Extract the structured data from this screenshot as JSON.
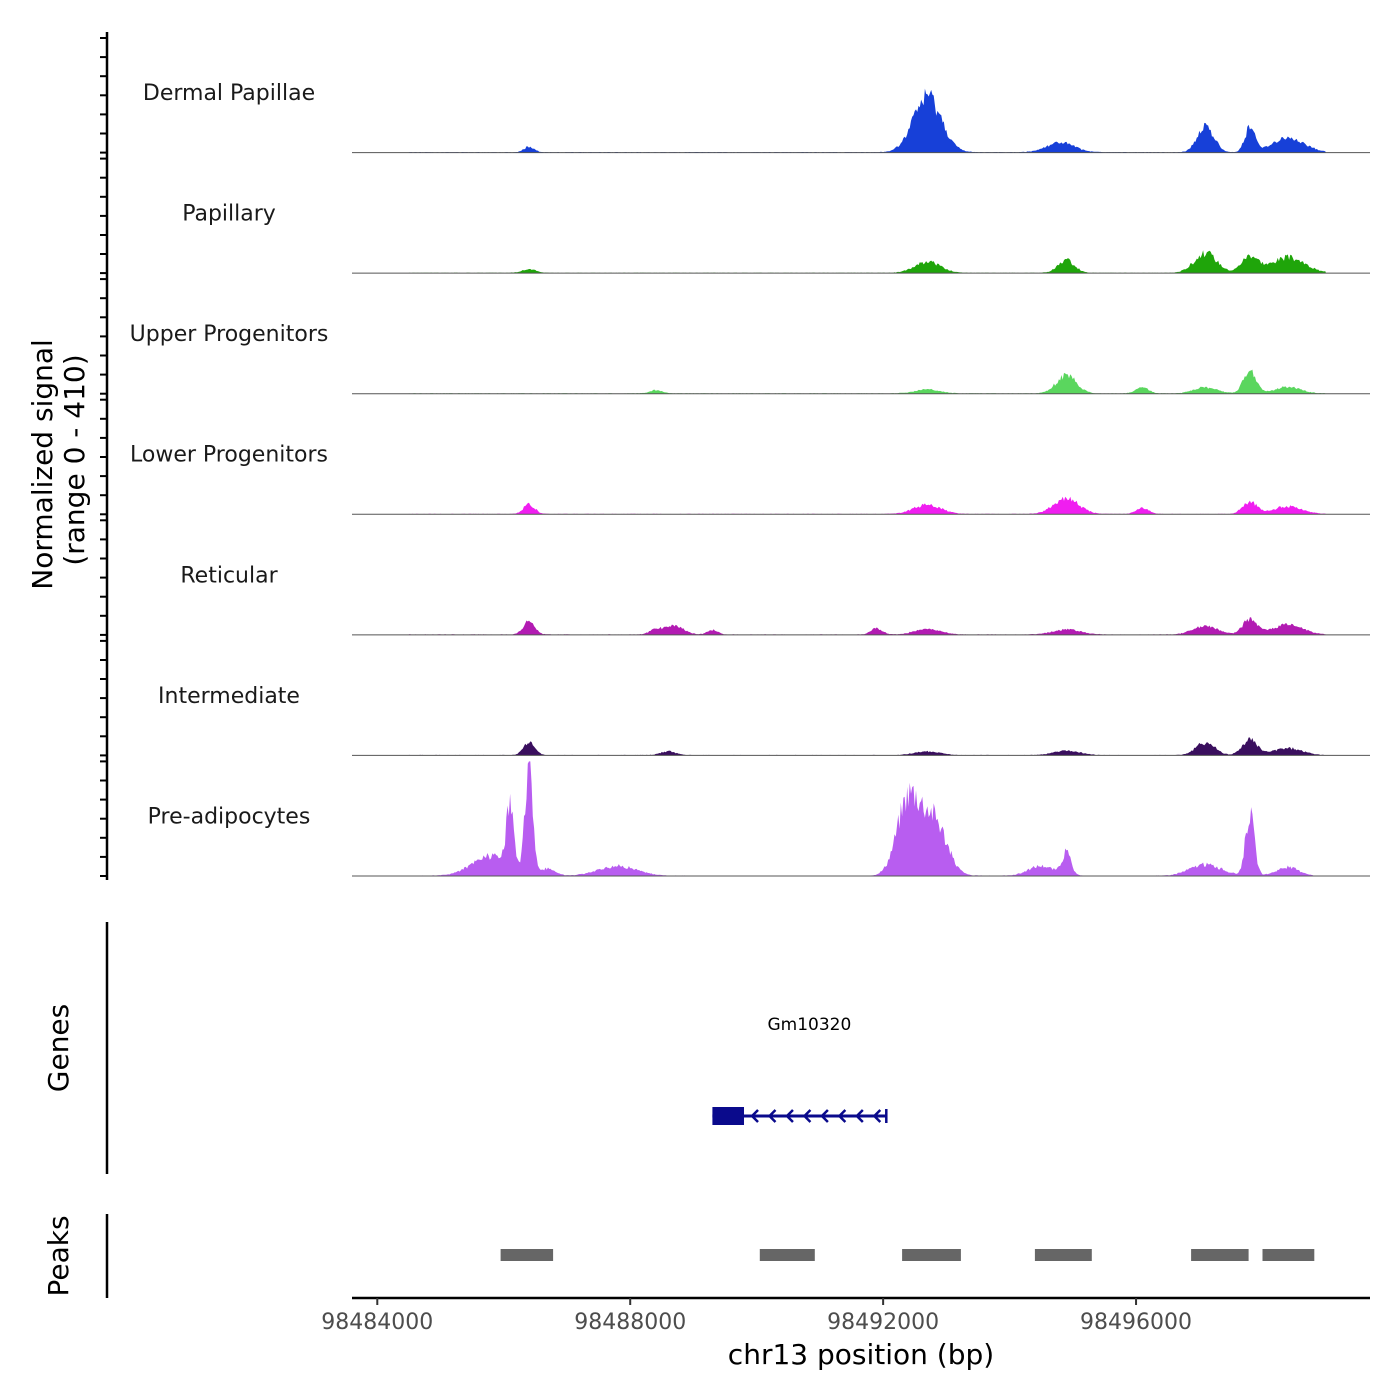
{
  "chart_data": {
    "type": "area",
    "chromosome": "chr13",
    "xlabel": "chr13 position (bp)",
    "xlim": [
      98483600,
      98499700
    ],
    "x_ticks": [
      98484000,
      98488000,
      98492000,
      98496000
    ],
    "x_tick_labels": [
      "98484000",
      "98488000",
      "98492000",
      "98496000"
    ],
    "coverage": {
      "ylabel": "Normalized signal\n(range 0 - 410)",
      "ylabel_lines": [
        "Normalized signal",
        "(range 0 - 410)"
      ],
      "ylim": [
        0,
        410
      ],
      "series": [
        {
          "name": "Dermal Papillae",
          "color": "#1740D8",
          "x_start": 98484500,
          "x_end": 98499000,
          "peaks": [
            [
              98486400,
              20,
              80
            ],
            [
              98492700,
              200,
              220
            ],
            [
              98494800,
              35,
              220
            ],
            [
              98497100,
              95,
              130
            ],
            [
              98497800,
              85,
              80
            ],
            [
              98498400,
              50,
              260
            ]
          ]
        },
        {
          "name": "Papillary",
          "color": "#1FA50A",
          "x_start": 98484500,
          "x_end": 98499000,
          "peaks": [
            [
              98486400,
              12,
              120
            ],
            [
              98492700,
              40,
              200
            ],
            [
              98494900,
              45,
              130
            ],
            [
              98497100,
              70,
              180
            ],
            [
              98497800,
              60,
              130
            ],
            [
              98498400,
              55,
              260
            ]
          ]
        },
        {
          "name": "Upper Progenitors",
          "color": "#5AD65E",
          "x_start": 98484500,
          "x_end": 98499000,
          "peaks": [
            [
              98488400,
              12,
              100
            ],
            [
              98492700,
              14,
              200
            ],
            [
              98494900,
              65,
              160
            ],
            [
              98496100,
              22,
              100
            ],
            [
              98497100,
              22,
              180
            ],
            [
              98497800,
              80,
              100
            ],
            [
              98498400,
              24,
              200
            ]
          ]
        },
        {
          "name": "Lower Progenitors",
          "color": "#F01EF0",
          "x_start": 98484500,
          "x_end": 98499000,
          "peaks": [
            [
              98486400,
              35,
              90
            ],
            [
              98492700,
              32,
              220
            ],
            [
              98494900,
              55,
              200
            ],
            [
              98496100,
              22,
              100
            ],
            [
              98497800,
              45,
              110
            ],
            [
              98498400,
              28,
              220
            ]
          ]
        },
        {
          "name": "Reticular",
          "color": "#B21BB2",
          "x_start": 98484500,
          "x_end": 98499000,
          "peaks": [
            [
              98486400,
              48,
              90
            ],
            [
              98488400,
              18,
              100
            ],
            [
              98488700,
              30,
              150
            ],
            [
              98489300,
              18,
              80
            ],
            [
              98491900,
              22,
              90
            ],
            [
              98492700,
              22,
              200
            ],
            [
              98494900,
              18,
              220
            ],
            [
              98497100,
              30,
              200
            ],
            [
              98497800,
              55,
              110
            ],
            [
              98498400,
              35,
              240
            ]
          ]
        },
        {
          "name": "Intermediate",
          "color": "#3A0F5E",
          "x_start": 98484500,
          "x_end": 98499000,
          "peaks": [
            [
              98486400,
              48,
              90
            ],
            [
              98488600,
              14,
              120
            ],
            [
              98492700,
              14,
              200
            ],
            [
              98494900,
              16,
              200
            ],
            [
              98497100,
              45,
              150
            ],
            [
              98497800,
              55,
              120
            ],
            [
              98498400,
              25,
              220
            ]
          ]
        },
        {
          "name": "Pre-adipocytes",
          "color": "#B85DF0",
          "x_start": 98484400,
          "x_end": 98498800,
          "peaks": [
            [
              98485800,
              70,
              300
            ],
            [
              98486100,
              230,
              55
            ],
            [
              98486400,
              410,
              60
            ],
            [
              98486700,
              25,
              120
            ],
            [
              98487800,
              35,
              300
            ],
            [
              98492400,
              270,
              180
            ],
            [
              98492800,
              200,
              200
            ],
            [
              98494500,
              35,
              200
            ],
            [
              98494900,
              80,
              70
            ],
            [
              98497100,
              40,
              250
            ],
            [
              98497800,
              220,
              70
            ],
            [
              98498400,
              30,
              180
            ]
          ]
        }
      ]
    },
    "genes": {
      "ylabel": "Genes",
      "items": [
        {
          "name": "Gm10320",
          "start": 98489300,
          "end": 98492050,
          "strand": "-",
          "exon": [
            98489300,
            98489800
          ],
          "color": "#0A0A8C"
        }
      ]
    },
    "peaks": {
      "ylabel": "Peaks",
      "color": "#666666",
      "regions": [
        [
          98485950,
          98486780
        ],
        [
          98490050,
          98490920
        ],
        [
          98492300,
          98493230
        ],
        [
          98494400,
          98495300
        ],
        [
          98496870,
          98497780
        ],
        [
          98498000,
          98498820
        ]
      ]
    }
  }
}
